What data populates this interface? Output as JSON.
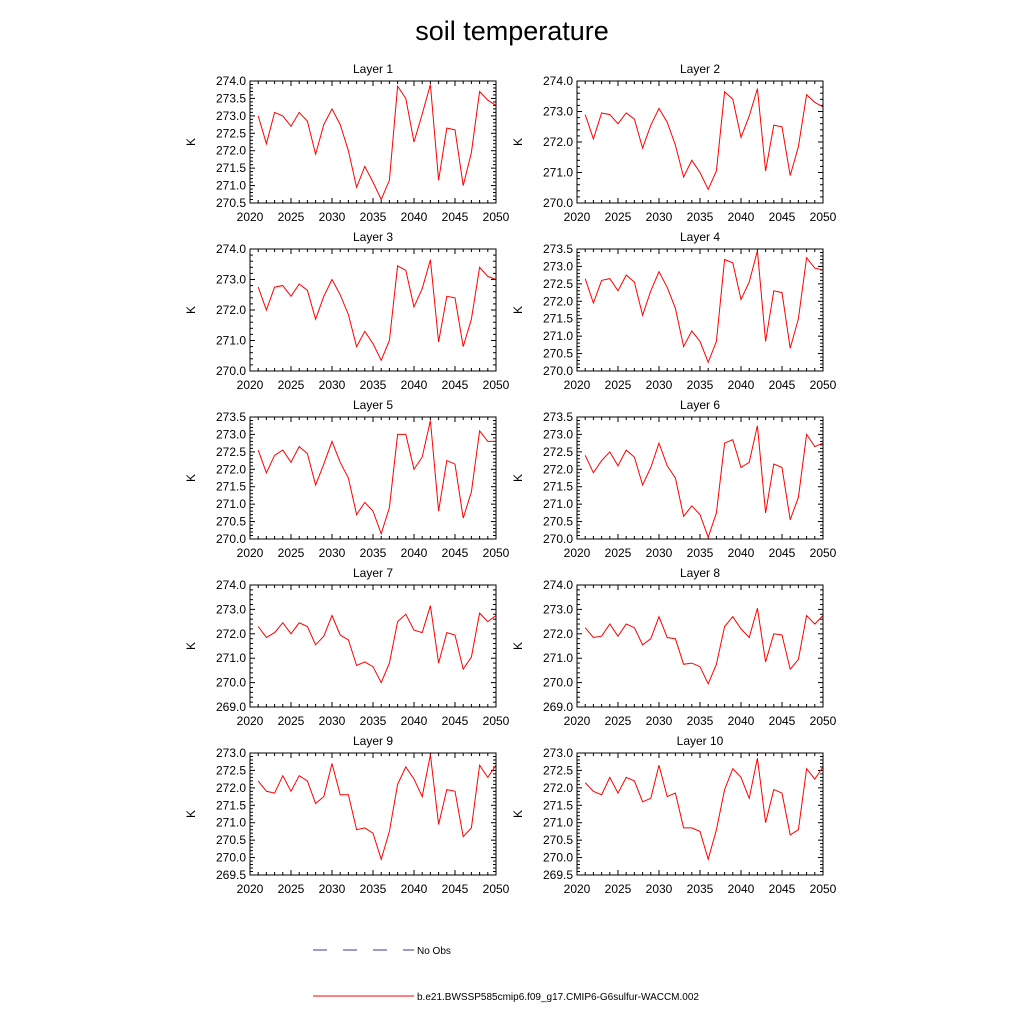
{
  "figure": {
    "title": "soil temperature",
    "legend": [
      {
        "label": "No Obs",
        "color": "#3a3a9a",
        "style": "dashed"
      },
      {
        "label": "b.e21.BWSSP585cmip6.f09_g17.CMIP6-G6sulfur-WACCM.002",
        "color": "#ff0000",
        "style": "solid"
      }
    ]
  },
  "chart_data": [
    {
      "type": "line",
      "title": "Layer 1",
      "ylabel": "K",
      "xlim": [
        2020,
        2050
      ],
      "ylim": [
        270.5,
        274.0
      ],
      "xticks": [
        2020,
        2025,
        2030,
        2035,
        2040,
        2045,
        2050
      ],
      "yticks": [
        "270.5",
        "271.0",
        "271.5",
        "272.0",
        "272.5",
        "273.0",
        "273.5",
        "274.0"
      ],
      "series": [
        {
          "color": "#ff0000",
          "x": [
            2021,
            2022,
            2023,
            2024,
            2025,
            2026,
            2027,
            2028,
            2029,
            2030,
            2031,
            2032,
            2033,
            2034,
            2035,
            2036,
            2037,
            2038,
            2039,
            2040,
            2041,
            2042,
            2043,
            2044,
            2045,
            2046,
            2047,
            2048,
            2049,
            2050
          ],
          "values": [
            273.0,
            272.2,
            273.1,
            273.0,
            272.7,
            273.1,
            272.85,
            271.9,
            272.75,
            273.2,
            272.75,
            272.0,
            270.95,
            271.55,
            271.1,
            270.6,
            271.15,
            273.85,
            273.5,
            272.25,
            273.05,
            273.9,
            271.15,
            272.65,
            272.6,
            271.0,
            271.95,
            273.7,
            273.45,
            273.3
          ]
        }
      ]
    },
    {
      "type": "line",
      "title": "Layer 2",
      "ylabel": "K",
      "xlim": [
        2020,
        2050
      ],
      "ylim": [
        270.0,
        274.0
      ],
      "xticks": [
        2020,
        2025,
        2030,
        2035,
        2040,
        2045,
        2050
      ],
      "yticks": [
        "270.0",
        "271.0",
        "272.0",
        "273.0",
        "274.0"
      ],
      "series": [
        {
          "color": "#ff0000",
          "x": [
            2021,
            2022,
            2023,
            2024,
            2025,
            2026,
            2027,
            2028,
            2029,
            2030,
            2031,
            2032,
            2033,
            2034,
            2035,
            2036,
            2037,
            2038,
            2039,
            2040,
            2041,
            2042,
            2043,
            2044,
            2045,
            2046,
            2047,
            2048,
            2049,
            2050
          ],
          "values": [
            272.9,
            272.1,
            272.95,
            272.9,
            272.6,
            272.95,
            272.75,
            271.8,
            272.55,
            273.1,
            272.65,
            271.9,
            270.85,
            271.4,
            271.0,
            270.45,
            271.05,
            273.65,
            273.4,
            272.15,
            272.85,
            273.75,
            271.05,
            272.55,
            272.5,
            270.9,
            271.85,
            273.55,
            273.3,
            273.15
          ]
        }
      ]
    },
    {
      "type": "line",
      "title": "Layer 3",
      "ylabel": "K",
      "xlim": [
        2020,
        2050
      ],
      "ylim": [
        270.0,
        274.0
      ],
      "xticks": [
        2020,
        2025,
        2030,
        2035,
        2040,
        2045,
        2050
      ],
      "yticks": [
        "270.0",
        "271.0",
        "272.0",
        "273.0",
        "274.0"
      ],
      "series": [
        {
          "color": "#ff0000",
          "x": [
            2021,
            2022,
            2023,
            2024,
            2025,
            2026,
            2027,
            2028,
            2029,
            2030,
            2031,
            2032,
            2033,
            2034,
            2035,
            2036,
            2037,
            2038,
            2039,
            2040,
            2041,
            2042,
            2043,
            2044,
            2045,
            2046,
            2047,
            2048,
            2049,
            2050
          ],
          "values": [
            272.75,
            272.0,
            272.75,
            272.8,
            272.45,
            272.85,
            272.65,
            271.7,
            272.45,
            273.0,
            272.5,
            271.85,
            270.8,
            271.3,
            270.9,
            270.35,
            271.0,
            273.45,
            273.3,
            272.1,
            272.7,
            273.65,
            270.95,
            272.45,
            272.4,
            270.8,
            271.7,
            273.4,
            273.1,
            273.0
          ]
        }
      ]
    },
    {
      "type": "line",
      "title": "Layer 4",
      "ylabel": "K",
      "xlim": [
        2020,
        2050
      ],
      "ylim": [
        270.0,
        273.5
      ],
      "xticks": [
        2020,
        2025,
        2030,
        2035,
        2040,
        2045,
        2050
      ],
      "yticks": [
        "270.0",
        "270.5",
        "271.0",
        "271.5",
        "272.0",
        "272.5",
        "273.0",
        "273.5"
      ],
      "series": [
        {
          "color": "#ff0000",
          "x": [
            2021,
            2022,
            2023,
            2024,
            2025,
            2026,
            2027,
            2028,
            2029,
            2030,
            2031,
            2032,
            2033,
            2034,
            2035,
            2036,
            2037,
            2038,
            2039,
            2040,
            2041,
            2042,
            2043,
            2044,
            2045,
            2046,
            2047,
            2048,
            2049,
            2050
          ],
          "values": [
            272.65,
            271.95,
            272.6,
            272.65,
            272.3,
            272.75,
            272.55,
            271.6,
            272.3,
            272.85,
            272.4,
            271.8,
            270.7,
            271.15,
            270.85,
            270.25,
            270.85,
            273.2,
            273.1,
            272.05,
            272.55,
            273.45,
            270.85,
            272.3,
            272.25,
            270.65,
            271.5,
            273.25,
            272.95,
            272.9
          ]
        }
      ]
    },
    {
      "type": "line",
      "title": "Layer 5",
      "ylabel": "K",
      "xlim": [
        2020,
        2050
      ],
      "ylim": [
        270.0,
        273.5
      ],
      "xticks": [
        2020,
        2025,
        2030,
        2035,
        2040,
        2045,
        2050
      ],
      "yticks": [
        "270.0",
        "270.5",
        "271.0",
        "271.5",
        "272.0",
        "272.5",
        "273.0",
        "273.5"
      ],
      "series": [
        {
          "color": "#ff0000",
          "x": [
            2021,
            2022,
            2023,
            2024,
            2025,
            2026,
            2027,
            2028,
            2029,
            2030,
            2031,
            2032,
            2033,
            2034,
            2035,
            2036,
            2037,
            2038,
            2039,
            2040,
            2041,
            2042,
            2043,
            2044,
            2045,
            2046,
            2047,
            2048,
            2049,
            2050
          ],
          "values": [
            272.55,
            271.9,
            272.4,
            272.55,
            272.2,
            272.65,
            272.45,
            271.55,
            272.15,
            272.8,
            272.2,
            271.75,
            270.7,
            271.05,
            270.8,
            270.15,
            270.9,
            273.0,
            273.0,
            272.0,
            272.35,
            273.4,
            270.8,
            272.25,
            272.15,
            270.6,
            271.35,
            273.1,
            272.8,
            272.8
          ]
        }
      ]
    },
    {
      "type": "line",
      "title": "Layer 6",
      "ylabel": "K",
      "xlim": [
        2020,
        2050
      ],
      "ylim": [
        270.0,
        273.5
      ],
      "xticks": [
        2020,
        2025,
        2030,
        2035,
        2040,
        2045,
        2050
      ],
      "yticks": [
        "270.0",
        "270.5",
        "271.0",
        "271.5",
        "272.0",
        "272.5",
        "273.0",
        "273.5"
      ],
      "series": [
        {
          "color": "#ff0000",
          "x": [
            2021,
            2022,
            2023,
            2024,
            2025,
            2026,
            2027,
            2028,
            2029,
            2030,
            2031,
            2032,
            2033,
            2034,
            2035,
            2036,
            2037,
            2038,
            2039,
            2040,
            2041,
            2042,
            2043,
            2044,
            2045,
            2046,
            2047,
            2048,
            2049,
            2050
          ],
          "values": [
            272.4,
            271.9,
            272.25,
            272.5,
            272.1,
            272.55,
            272.35,
            271.55,
            272.05,
            272.75,
            272.1,
            271.75,
            270.65,
            270.95,
            270.7,
            270.05,
            270.75,
            272.75,
            272.85,
            272.05,
            272.2,
            273.25,
            270.75,
            272.15,
            272.05,
            270.55,
            271.2,
            273.0,
            272.65,
            272.75
          ]
        }
      ]
    },
    {
      "type": "line",
      "title": "Layer 7",
      "ylabel": "K",
      "xlim": [
        2020,
        2050
      ],
      "ylim": [
        269.0,
        274.0
      ],
      "xticks": [
        2020,
        2025,
        2030,
        2035,
        2040,
        2045,
        2050
      ],
      "yticks": [
        "269.0",
        "270.0",
        "271.0",
        "272.0",
        "273.0",
        "274.0"
      ],
      "series": [
        {
          "color": "#ff0000",
          "x": [
            2021,
            2022,
            2023,
            2024,
            2025,
            2026,
            2027,
            2028,
            2029,
            2030,
            2031,
            2032,
            2033,
            2034,
            2035,
            2036,
            2037,
            2038,
            2039,
            2040,
            2041,
            2042,
            2043,
            2044,
            2045,
            2046,
            2047,
            2048,
            2049,
            2050
          ],
          "values": [
            272.3,
            271.85,
            272.05,
            272.45,
            272.0,
            272.45,
            272.3,
            271.55,
            271.9,
            272.75,
            271.95,
            271.75,
            270.7,
            270.85,
            270.65,
            270.0,
            270.8,
            272.5,
            272.8,
            272.15,
            272.05,
            273.15,
            270.8,
            272.05,
            271.95,
            270.55,
            271.05,
            272.85,
            272.5,
            272.75
          ]
        }
      ]
    },
    {
      "type": "line",
      "title": "Layer 8",
      "ylabel": "K",
      "xlim": [
        2020,
        2050
      ],
      "ylim": [
        269.0,
        274.0
      ],
      "xticks": [
        2020,
        2025,
        2030,
        2035,
        2040,
        2045,
        2050
      ],
      "yticks": [
        "269.0",
        "270.0",
        "271.0",
        "272.0",
        "273.0",
        "274.0"
      ],
      "series": [
        {
          "color": "#ff0000",
          "x": [
            2021,
            2022,
            2023,
            2024,
            2025,
            2026,
            2027,
            2028,
            2029,
            2030,
            2031,
            2032,
            2033,
            2034,
            2035,
            2036,
            2037,
            2038,
            2039,
            2040,
            2041,
            2042,
            2043,
            2044,
            2045,
            2046,
            2047,
            2048,
            2049,
            2050
          ],
          "values": [
            272.25,
            271.85,
            271.9,
            272.4,
            271.9,
            272.4,
            272.25,
            271.55,
            271.8,
            272.7,
            271.85,
            271.8,
            270.75,
            270.8,
            270.65,
            269.95,
            270.75,
            272.3,
            272.7,
            272.2,
            271.85,
            273.05,
            270.85,
            272.0,
            271.95,
            270.55,
            270.95,
            272.75,
            272.4,
            272.75
          ]
        }
      ]
    },
    {
      "type": "line",
      "title": "Layer 9",
      "ylabel": "K",
      "xlim": [
        2020,
        2050
      ],
      "ylim": [
        269.5,
        273.0
      ],
      "xticks": [
        2020,
        2025,
        2030,
        2035,
        2040,
        2045,
        2050
      ],
      "yticks": [
        "269.5",
        "270.0",
        "270.5",
        "271.0",
        "271.5",
        "272.0",
        "272.5",
        "273.0"
      ],
      "series": [
        {
          "color": "#ff0000",
          "x": [
            2021,
            2022,
            2023,
            2024,
            2025,
            2026,
            2027,
            2028,
            2029,
            2030,
            2031,
            2032,
            2033,
            2034,
            2035,
            2036,
            2037,
            2038,
            2039,
            2040,
            2041,
            2042,
            2043,
            2044,
            2045,
            2046,
            2047,
            2048,
            2049,
            2050
          ],
          "values": [
            272.2,
            271.9,
            271.85,
            272.35,
            271.9,
            272.35,
            272.2,
            271.55,
            271.75,
            272.7,
            271.8,
            271.8,
            270.8,
            270.85,
            270.7,
            269.95,
            270.75,
            272.1,
            272.6,
            272.25,
            271.75,
            272.95,
            270.95,
            271.95,
            271.9,
            270.6,
            270.85,
            272.65,
            272.3,
            272.65
          ]
        }
      ]
    },
    {
      "type": "line",
      "title": "Layer 10",
      "ylabel": "K",
      "xlim": [
        2020,
        2050
      ],
      "ylim": [
        269.5,
        273.0
      ],
      "xticks": [
        2020,
        2025,
        2030,
        2035,
        2040,
        2045,
        2050
      ],
      "yticks": [
        "269.5",
        "270.0",
        "270.5",
        "271.0",
        "271.5",
        "272.0",
        "272.5",
        "273.0"
      ],
      "series": [
        {
          "color": "#ff0000",
          "x": [
            2021,
            2022,
            2023,
            2024,
            2025,
            2026,
            2027,
            2028,
            2029,
            2030,
            2031,
            2032,
            2033,
            2034,
            2035,
            2036,
            2037,
            2038,
            2039,
            2040,
            2041,
            2042,
            2043,
            2044,
            2045,
            2046,
            2047,
            2048,
            2049,
            2050
          ],
          "values": [
            272.15,
            271.9,
            271.8,
            272.3,
            271.85,
            272.3,
            272.2,
            271.6,
            271.7,
            272.65,
            271.75,
            271.85,
            270.85,
            270.85,
            270.75,
            269.95,
            270.8,
            271.95,
            272.55,
            272.3,
            271.7,
            272.85,
            271.0,
            271.95,
            271.85,
            270.65,
            270.8,
            272.55,
            272.25,
            272.6
          ]
        }
      ]
    }
  ]
}
